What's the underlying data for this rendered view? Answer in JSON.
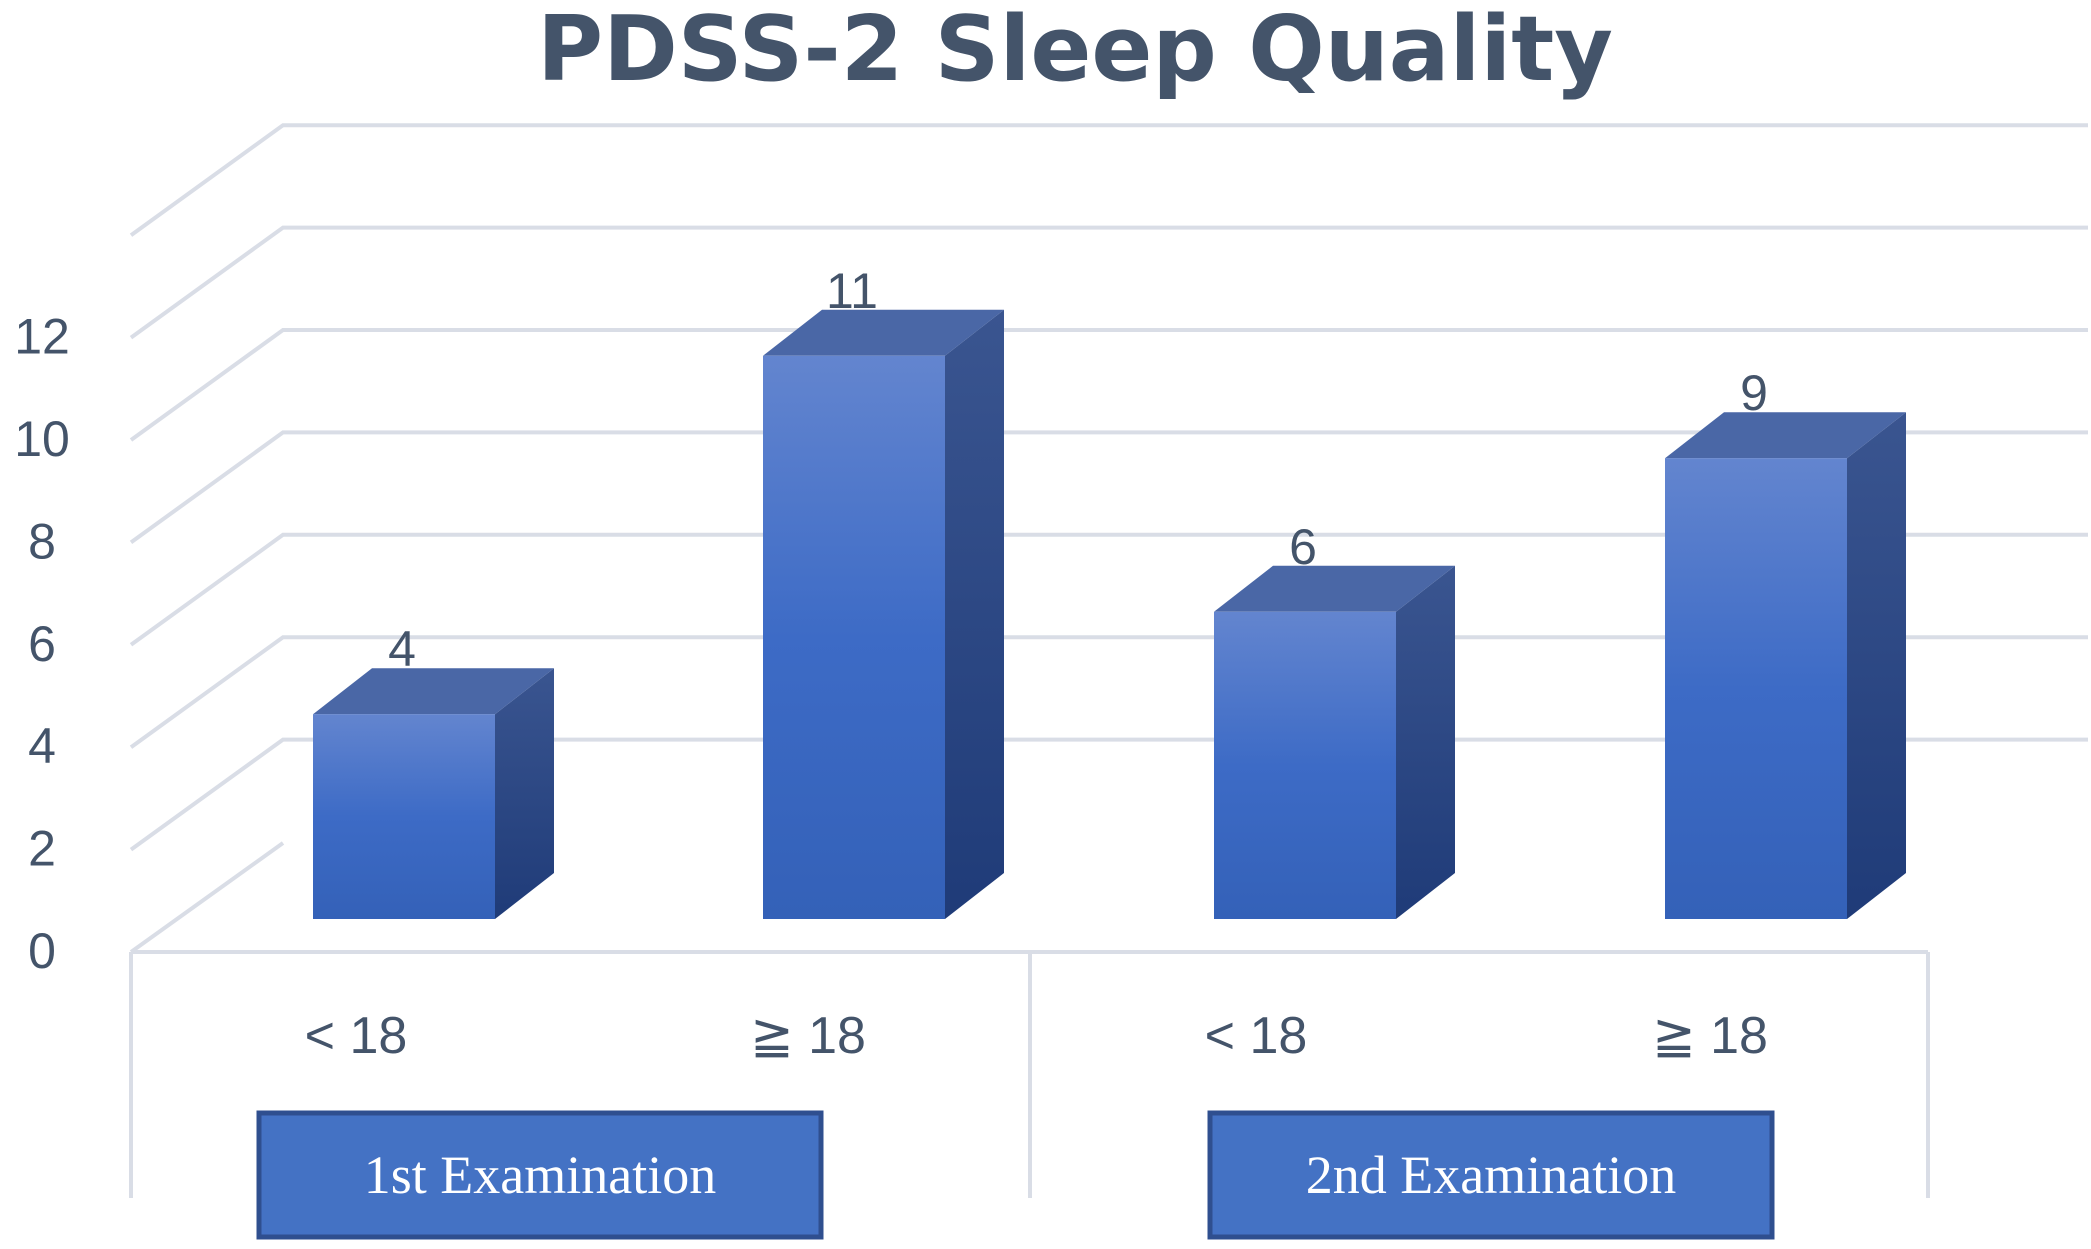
{
  "chart_data": {
    "type": "bar",
    "title": "PDSS-2 Sleep Quality",
    "xlabel": "",
    "ylabel": "",
    "ylim": [
      0,
      12
    ],
    "yticks": [
      0,
      2,
      4,
      6,
      8,
      10,
      12
    ],
    "grid": true,
    "three_d": true,
    "categories": [
      "< 18",
      "≧ 18",
      "< 18",
      "≧ 18"
    ],
    "values": [
      4,
      11,
      6,
      9
    ],
    "data_labels": [
      "4",
      "11",
      "6",
      "9"
    ],
    "groups": [
      {
        "label": "1st Examination",
        "categories": [
          0,
          1
        ]
      },
      {
        "label": "2nd Examination",
        "categories": [
          2,
          3
        ]
      }
    ],
    "colors": {
      "bar_front": "#4472c4",
      "bar_side": "#2a4a8a",
      "bar_top": "#4a67a6",
      "grid": "#d9dde6",
      "text": "#44546a",
      "group_box_fill": "#4472c4",
      "group_box_border": "#2f4f8f"
    }
  }
}
